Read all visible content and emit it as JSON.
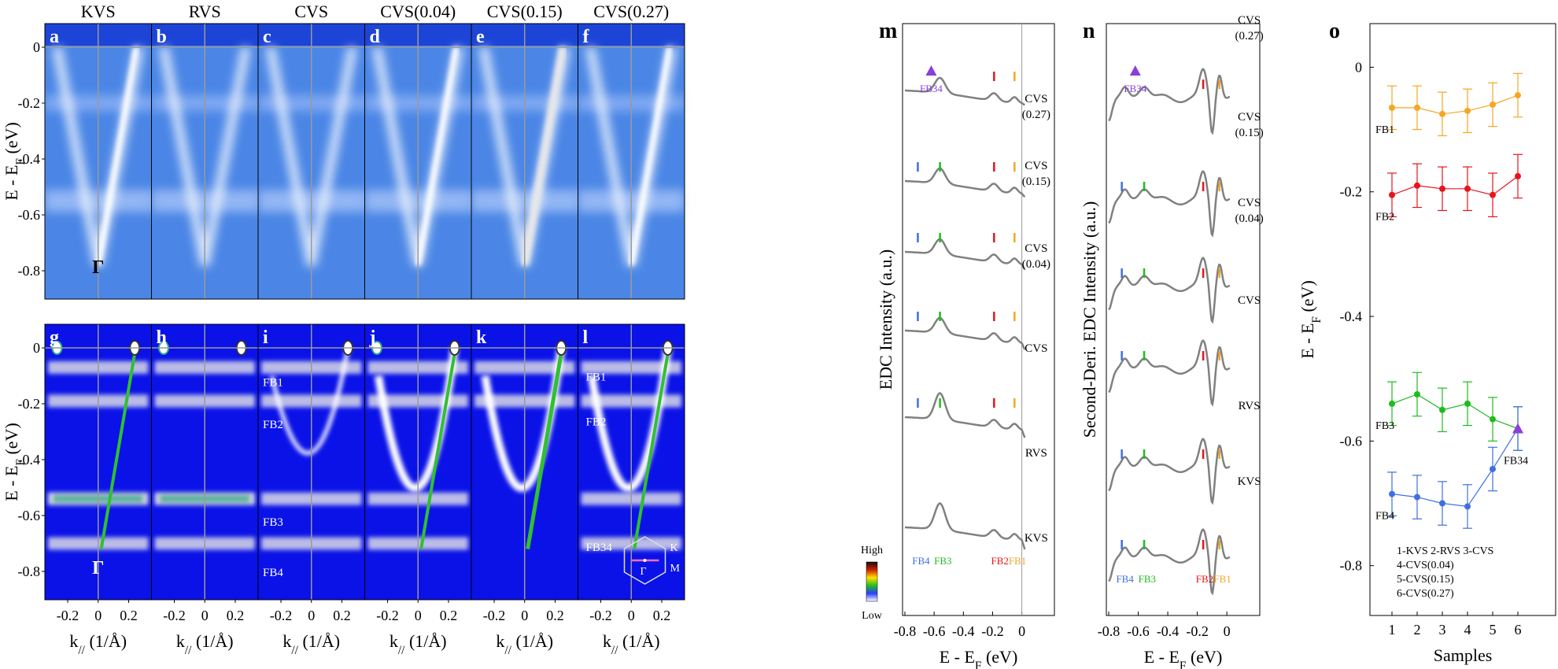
{
  "figure": {
    "arpes": {
      "panel_titles": [
        "KVS",
        "RVS",
        "CVS",
        "CVS(0.04)",
        "CVS(0.15)",
        "CVS(0.27)"
      ],
      "top_letters": [
        "a",
        "b",
        "c",
        "d",
        "e",
        "f"
      ],
      "bottom_letters": [
        "g",
        "h",
        "i",
        "j",
        "k",
        "l"
      ],
      "y_ticks": [
        "0",
        "-0.2",
        "-0.4",
        "-0.6",
        "-0.8"
      ],
      "x_ticks": [
        "-0.2",
        "0",
        "0.2"
      ],
      "y_label_main": "E - E",
      "y_label_sub": "F",
      "y_label_tail": " (eV)",
      "x_label_main": "k",
      "x_label_sub": "//",
      "x_label_tail": " (1/Å)",
      "gamma_label": "Γ",
      "band_labels": [
        "FB1",
        "FB2",
        "FB3",
        "FB4"
      ],
      "band_label_l": [
        "FB1",
        "FB2",
        "FB34"
      ],
      "colorbar_high": "High",
      "colorbar_low": "Low",
      "bz_labels": {
        "K": "K",
        "M": "M",
        "G": "Γ"
      }
    },
    "panel_m": {
      "letter": "m",
      "ylabel": "EDC Intensity (a.u.)",
      "xlabel_main": "E - E",
      "xlabel_sub": "F",
      "xlabel_tail": " (eV)",
      "x_ticks": [
        "-0.8",
        "-0.6",
        "-0.4",
        "-0.2",
        "0"
      ],
      "curve_labels": [
        "CVS",
        "(0.27)",
        "CVS",
        "(0.15)",
        "CVS",
        "(0.04)",
        "CVS",
        "RVS",
        "KVS"
      ],
      "fb34": "FB34",
      "markers": [
        "FB4",
        "FB3",
        "FB2",
        "FB1"
      ]
    },
    "panel_n": {
      "letter": "n",
      "ylabel": "Second-Deri. EDC Intensity (a.u.)",
      "x_ticks": [
        "-0.8",
        "-0.6",
        "-0.4",
        "-0.2",
        "0"
      ],
      "curve_labels": [
        "CVS",
        "(0.27)",
        "CVS",
        "(0.15)",
        "CVS",
        "(0.04)",
        "CVS",
        "RVS",
        "KVS"
      ],
      "fb34": "FB34",
      "markers": [
        "FB4",
        "FB3",
        "FB2",
        "FB1"
      ]
    },
    "panel_o": {
      "letter": "o",
      "ylabel_main": "E - E",
      "ylabel_sub": "F",
      "ylabel_tail": " (eV)",
      "xlabel": "Samples",
      "y_ticks": [
        "0",
        "-0.2",
        "-0.4",
        "-0.6",
        "-0.8"
      ],
      "x_ticks": [
        "1",
        "2",
        "3",
        "4",
        "5",
        "6"
      ],
      "legend": [
        "1-KVS   2-RVS   3-CVS",
        "4-CVS(0.04)",
        "5-CVS(0.15)",
        "6-CVS(0.27)"
      ]
    },
    "colors": {
      "FB1": "#f5a623",
      "FB2": "#e8141b",
      "FB3": "#1fbb1f",
      "FB4": "#3f6fe0",
      "FB34": "#8a3fd8",
      "curve": "#808080"
    }
  },
  "chart_data": {
    "type": "scatter",
    "title": "o",
    "xlabel": "Samples",
    "ylabel": "E - E_F (eV)",
    "x": [
      1,
      2,
      3,
      4,
      5,
      6
    ],
    "ylim": [
      -0.88,
      0.07
    ],
    "categories": [
      "KVS",
      "RVS",
      "CVS",
      "CVS(0.04)",
      "CVS(0.15)",
      "CVS(0.27)"
    ],
    "series": [
      {
        "name": "FB1",
        "values": [
          -0.065,
          -0.065,
          -0.075,
          -0.07,
          -0.06,
          -0.045
        ],
        "err": 0.035
      },
      {
        "name": "FB2",
        "values": [
          -0.205,
          -0.19,
          -0.195,
          -0.195,
          -0.205,
          -0.175
        ],
        "err": 0.035
      },
      {
        "name": "FB3",
        "values": [
          -0.54,
          -0.525,
          -0.55,
          -0.54,
          -0.565,
          -0.58
        ],
        "err": 0.035
      },
      {
        "name": "FB4",
        "values": [
          -0.685,
          -0.69,
          -0.7,
          -0.705,
          -0.645,
          -0.58
        ],
        "err": 0.035
      }
    ]
  }
}
